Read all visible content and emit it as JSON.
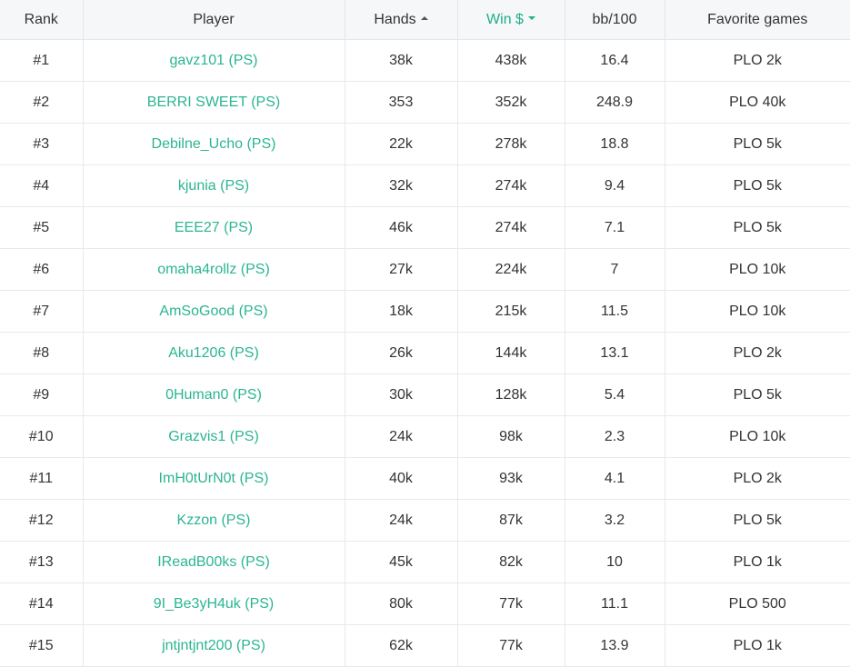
{
  "colors": {
    "accent": "#2bb592",
    "active_header": "#1fae8a",
    "header_bg": "#f5f7f8",
    "border": "#e7e9eb"
  },
  "table": {
    "columns": [
      {
        "key": "rank",
        "label": "Rank",
        "sortable": false
      },
      {
        "key": "player",
        "label": "Player",
        "sortable": false
      },
      {
        "key": "hands",
        "label": "Hands",
        "sortable": true,
        "sort": "asc",
        "sort_icon": "caret-up-icon"
      },
      {
        "key": "win",
        "label": "Win $",
        "sortable": true,
        "active": true,
        "sort": "desc",
        "sort_icon": "caret-down-icon"
      },
      {
        "key": "bb",
        "label": "bb/100",
        "sortable": false
      },
      {
        "key": "fav",
        "label": "Favorite games",
        "sortable": false
      }
    ],
    "rows": [
      {
        "rank": "#1",
        "player": "gavz101 (PS)",
        "hands": "38k",
        "win": "438k",
        "bb": "16.4",
        "fav": "PLO 2k"
      },
      {
        "rank": "#2",
        "player": "BERRI SWEET (PS)",
        "hands": "353",
        "win": "352k",
        "bb": "248.9",
        "fav": "PLO 40k"
      },
      {
        "rank": "#3",
        "player": "Debilne_Ucho (PS)",
        "hands": "22k",
        "win": "278k",
        "bb": "18.8",
        "fav": "PLO 5k"
      },
      {
        "rank": "#4",
        "player": "kjunia (PS)",
        "hands": "32k",
        "win": "274k",
        "bb": "9.4",
        "fav": "PLO 5k"
      },
      {
        "rank": "#5",
        "player": "EEE27 (PS)",
        "hands": "46k",
        "win": "274k",
        "bb": "7.1",
        "fav": "PLO 5k"
      },
      {
        "rank": "#6",
        "player": "omaha4rollz (PS)",
        "hands": "27k",
        "win": "224k",
        "bb": "7",
        "fav": "PLO 10k"
      },
      {
        "rank": "#7",
        "player": "AmSoGood (PS)",
        "hands": "18k",
        "win": "215k",
        "bb": "11.5",
        "fav": "PLO 10k"
      },
      {
        "rank": "#8",
        "player": "Aku1206 (PS)",
        "hands": "26k",
        "win": "144k",
        "bb": "13.1",
        "fav": "PLO 2k"
      },
      {
        "rank": "#9",
        "player": "0Human0 (PS)",
        "hands": "30k",
        "win": "128k",
        "bb": "5.4",
        "fav": "PLO 5k"
      },
      {
        "rank": "#10",
        "player": "Grazvis1 (PS)",
        "hands": "24k",
        "win": "98k",
        "bb": "2.3",
        "fav": "PLO 10k"
      },
      {
        "rank": "#11",
        "player": "ImH0tUrN0t (PS)",
        "hands": "40k",
        "win": "93k",
        "bb": "4.1",
        "fav": "PLO 2k"
      },
      {
        "rank": "#12",
        "player": "Kzzon (PS)",
        "hands": "24k",
        "win": "87k",
        "bb": "3.2",
        "fav": "PLO 5k"
      },
      {
        "rank": "#13",
        "player": "IReadB00ks (PS)",
        "hands": "45k",
        "win": "82k",
        "bb": "10",
        "fav": "PLO 1k"
      },
      {
        "rank": "#14",
        "player": "9I_Be3yH4uk (PS)",
        "hands": "80k",
        "win": "77k",
        "bb": "11.1",
        "fav": "PLO 500"
      },
      {
        "rank": "#15",
        "player": "jntjntjnt200 (PS)",
        "hands": "62k",
        "win": "77k",
        "bb": "13.9",
        "fav": "PLO 1k"
      }
    ]
  }
}
